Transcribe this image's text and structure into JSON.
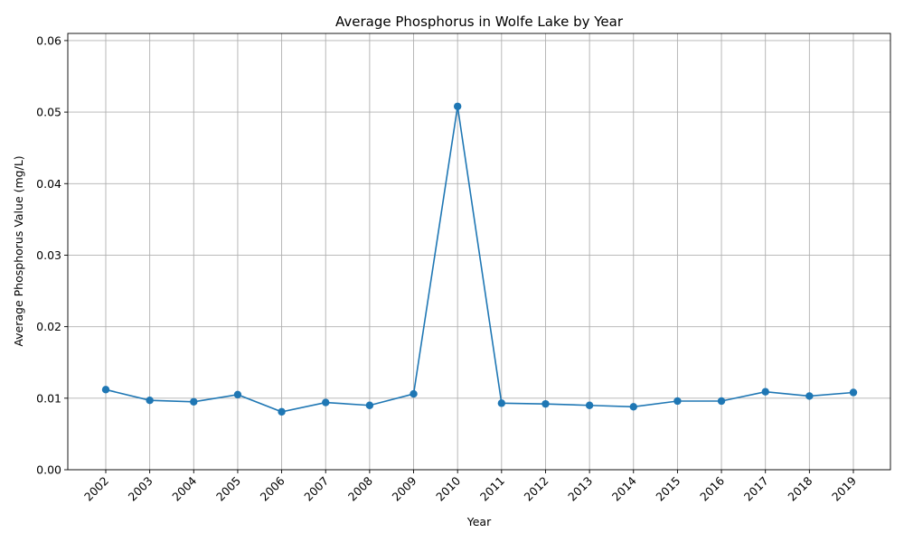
{
  "chart_data": {
    "type": "line",
    "title": "Average Phosphorus in Wolfe Lake by Year",
    "xlabel": "Year",
    "ylabel": "Average Phosphorus Value (mg/L)",
    "categories": [
      "2002",
      "2003",
      "2004",
      "2005",
      "2006",
      "2007",
      "2008",
      "2009",
      "2010",
      "2011",
      "2012",
      "2013",
      "2014",
      "2015",
      "2016",
      "2017",
      "2018",
      "2019"
    ],
    "series": [
      {
        "values": [
          0.0112,
          0.0097,
          0.0095,
          0.0105,
          0.0081,
          0.0094,
          0.009,
          0.0106,
          0.0508,
          0.0093,
          0.0092,
          0.009,
          0.0088,
          0.0096,
          0.0096,
          0.0109,
          0.0103,
          0.0108
        ],
        "color": "#1f77b4",
        "marker": "circle"
      }
    ],
    "ylim": [
      0,
      0.061
    ],
    "yticks": [
      "0.00",
      "0.01",
      "0.02",
      "0.03",
      "0.04",
      "0.05",
      "0.06"
    ],
    "grid": true,
    "legend": "none"
  }
}
